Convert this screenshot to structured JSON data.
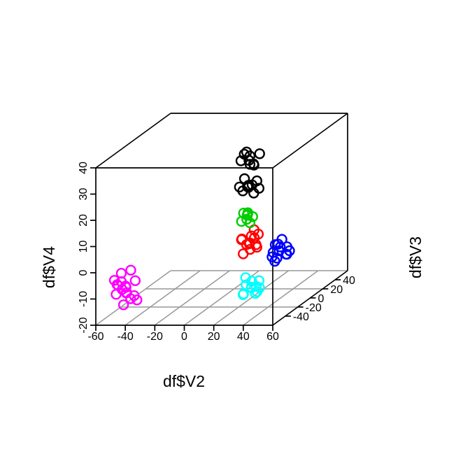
{
  "figure": {
    "background": "#FFFFFF",
    "box_color": "#000000",
    "grid_color": "#999999"
  },
  "chart_data": {
    "type": "scatter3d",
    "title": "",
    "xlabel": "df$V2",
    "ylabel": "df$V3",
    "zlabel": "df$V4",
    "xlim": [
      -60,
      60
    ],
    "ylim": [
      -60,
      60
    ],
    "zlim": [
      -20,
      40
    ],
    "x_ticks": [
      -60,
      -40,
      -20,
      0,
      20,
      40,
      60
    ],
    "y_ticks": [
      -40,
      -20,
      0,
      20,
      40
    ],
    "z_ticks": [
      -20,
      -10,
      0,
      10,
      20,
      30,
      40
    ],
    "grid": true,
    "grid_x_lines": [
      -40,
      -20,
      0,
      20,
      40
    ],
    "grid_y_lines": [
      -20,
      20
    ],
    "point_style": "open-circle",
    "series": [
      {
        "name": "magenta-cluster",
        "color": "#FF00FF",
        "points": [
          [
            -48,
            -40,
            -9
          ],
          [
            -53,
            -44,
            -11
          ],
          [
            -43,
            -37,
            -7
          ],
          [
            -50,
            -35,
            -12
          ],
          [
            -55,
            -42,
            -6
          ],
          [
            -45,
            -46,
            -10
          ],
          [
            -41,
            -39,
            -14
          ],
          [
            -52,
            -38,
            -4
          ],
          [
            -47,
            -43,
            -8
          ],
          [
            -55,
            -36,
            -9
          ],
          [
            -42,
            -41,
            -12
          ],
          [
            -49,
            -45,
            -6
          ],
          [
            -51,
            -39,
            -10
          ],
          [
            -44,
            -42,
            -13
          ],
          [
            -46,
            -37,
            -3
          ],
          [
            -54,
            -40,
            -8
          ],
          [
            -48,
            -44,
            -15
          ]
        ]
      },
      {
        "name": "cyan-cluster",
        "color": "#00FFFF",
        "points": [
          [
            37,
            -40,
            -9
          ],
          [
            33,
            -43,
            -11
          ],
          [
            41,
            -37,
            -7
          ],
          [
            35,
            -35,
            -10
          ],
          [
            39,
            -44,
            -6
          ],
          [
            31,
            -39,
            -12
          ],
          [
            43,
            -41,
            -9
          ],
          [
            36,
            -46,
            -7
          ],
          [
            40,
            -38,
            -11
          ],
          [
            34,
            -42,
            -5
          ],
          [
            38,
            -36,
            -12
          ],
          [
            42,
            -44,
            -8
          ]
        ]
      },
      {
        "name": "red-cluster",
        "color": "#FF0000",
        "points": [
          [
            19,
            0,
            1
          ],
          [
            15,
            -3,
            3
          ],
          [
            23,
            2,
            -1
          ],
          [
            17,
            4,
            0
          ],
          [
            21,
            -2,
            4
          ],
          [
            13,
            1,
            2
          ],
          [
            25,
            -4,
            1
          ],
          [
            18,
            3,
            -2
          ],
          [
            22,
            0,
            6
          ],
          [
            15,
            -1,
            -3
          ],
          [
            20,
            5,
            2
          ],
          [
            24,
            2,
            4
          ],
          [
            16,
            2,
            0
          ]
        ]
      },
      {
        "name": "green-cluster",
        "color": "#00CD00",
        "points": [
          [
            17,
            0,
            10
          ],
          [
            14,
            2,
            12
          ],
          [
            20,
            -2,
            9
          ],
          [
            16,
            3,
            11
          ],
          [
            19,
            -3,
            13
          ],
          [
            13,
            1,
            9
          ],
          [
            21,
            0,
            11
          ],
          [
            18,
            -1,
            12
          ]
        ]
      },
      {
        "name": "blue-cluster",
        "color": "#0000FF",
        "points": [
          [
            39,
            0,
            -2
          ],
          [
            35,
            -2,
            -4
          ],
          [
            43,
            3,
            -1
          ],
          [
            37,
            1,
            -5
          ],
          [
            41,
            -3,
            0
          ],
          [
            34,
            2,
            -3
          ],
          [
            46,
            0,
            -2
          ],
          [
            38,
            -4,
            1
          ],
          [
            42,
            4,
            -4
          ],
          [
            36,
            0,
            -6
          ],
          [
            40,
            2,
            2
          ],
          [
            45,
            -2,
            -3
          ],
          [
            37,
            3,
            0
          ]
        ]
      },
      {
        "name": "black-cluster",
        "color": "#000000",
        "points": [
          [
            10,
            20,
            29
          ],
          [
            6,
            22,
            31
          ],
          [
            14,
            18,
            28
          ],
          [
            9,
            24,
            30
          ],
          [
            13,
            21,
            27
          ],
          [
            5,
            19,
            29
          ],
          [
            16,
            23,
            31
          ],
          [
            12,
            17,
            28
          ],
          [
            8,
            21,
            32
          ],
          [
            9,
            20,
            19
          ],
          [
            5,
            22,
            17
          ],
          [
            13,
            18,
            20
          ],
          [
            8,
            24,
            18
          ],
          [
            15,
            21,
            21
          ],
          [
            4,
            19,
            19
          ],
          [
            12,
            23,
            16
          ],
          [
            11,
            17,
            20
          ],
          [
            7,
            20,
            22
          ],
          [
            16,
            22,
            18
          ]
        ]
      }
    ]
  }
}
